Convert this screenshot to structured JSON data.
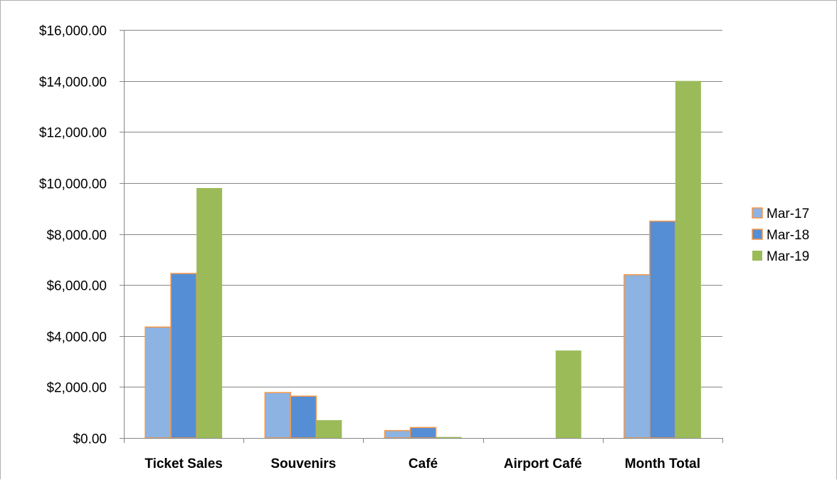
{
  "chart_data": {
    "type": "bar",
    "title": "",
    "xlabel": "",
    "ylabel": "",
    "categories": [
      "Ticket Sales",
      "Souvenirs",
      "Café",
      "Airport Café",
      "Month Total"
    ],
    "series": [
      {
        "name": "Mar-17",
        "color": "#8db3e2",
        "values": [
          4350,
          1780,
          290,
          0,
          6400
        ]
      },
      {
        "name": "Mar-18",
        "color": "#558ed5",
        "values": [
          6450,
          1640,
          410,
          0,
          8500
        ]
      },
      {
        "name": "Mar-19",
        "color": "#9bbb59",
        "values": [
          9800,
          700,
          40,
          3430,
          14000
        ]
      }
    ],
    "ylim": [
      0,
      16000
    ],
    "yticks": [
      0,
      2000,
      4000,
      6000,
      8000,
      10000,
      12000,
      14000,
      16000
    ],
    "ytick_labels": [
      "$0.00",
      "$2,000.00",
      "$4,000.00",
      "$6,000.00",
      "$8,000.00",
      "$10,000.00",
      "$12,000.00",
      "$14,000.00",
      "$16,000.00"
    ],
    "grid": true,
    "legend_position": "right",
    "bar_outline_color": "#f79646",
    "outlined_series": [
      "Mar-17",
      "Mar-18"
    ]
  }
}
